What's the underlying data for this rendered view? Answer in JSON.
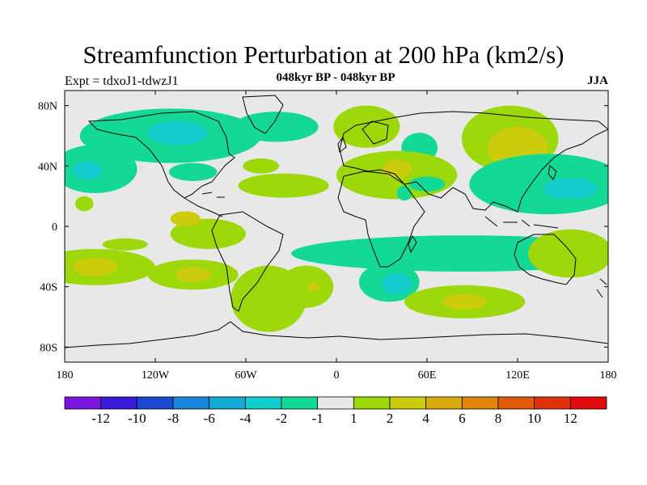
{
  "chart_data": {
    "type": "heatmap",
    "title": "Streamfunction Perturbation at 200 hPa (km2/s)",
    "subtitle": "048kyr BP - 048kyr BP",
    "left_string": "Expt = tdxoJ1-tdwzJ1",
    "right_string": "JJA",
    "x_range": [
      -180,
      180
    ],
    "y_range": [
      -90,
      90
    ],
    "x_ticks": [
      {
        "value": -180,
        "label": "180"
      },
      {
        "value": -120,
        "label": "120W"
      },
      {
        "value": -60,
        "label": "60W"
      },
      {
        "value": 0,
        "label": "0"
      },
      {
        "value": 60,
        "label": "60E"
      },
      {
        "value": 120,
        "label": "120E"
      },
      {
        "value": 180,
        "label": "180"
      }
    ],
    "y_ticks": [
      {
        "value": 80,
        "label": "80N"
      },
      {
        "value": 40,
        "label": "40N"
      },
      {
        "value": 0,
        "label": "0"
      },
      {
        "value": -40,
        "label": "40S"
      },
      {
        "value": -80,
        "label": "80S"
      }
    ],
    "colorbar": {
      "colors": [
        "#7a16e0",
        "#3a1ad8",
        "#1a4ad2",
        "#1a86d8",
        "#14aad4",
        "#14cccc",
        "#14d896",
        "#e8e8e8",
        "#9cd80a",
        "#cccc0c",
        "#d8aa0c",
        "#e0860a",
        "#e05a0a",
        "#e0300a",
        "#e00a0a"
      ],
      "labels": [
        "-12",
        "-10",
        "-8",
        "-6",
        "-4",
        "-2",
        "-1",
        "1",
        "2",
        "4",
        "6",
        "8",
        "10",
        "12"
      ]
    },
    "anomalies": [
      {
        "lon": -110,
        "lat": 60,
        "rlon": 60,
        "rlat": 18,
        "value": -2
      },
      {
        "lon": -105,
        "lat": 62,
        "rlon": 20,
        "rlat": 8,
        "value": -4
      },
      {
        "lon": -40,
        "lat": 66,
        "rlon": 28,
        "rlat": 10,
        "value": -2
      },
      {
        "lon": -160,
        "lat": 38,
        "rlon": 28,
        "rlat": 16,
        "value": -2
      },
      {
        "lon": -165,
        "lat": 37,
        "rlon": 10,
        "rlat": 6,
        "value": -4
      },
      {
        "lon": -95,
        "lat": 36,
        "rlon": 16,
        "rlat": 6,
        "value": -2
      },
      {
        "lon": -150,
        "lat": 60,
        "rlon": 4,
        "rlat": 4,
        "value": -2
      },
      {
        "lon": -50,
        "lat": 40,
        "rlon": 12,
        "rlat": 5,
        "value": 2
      },
      {
        "lon": -35,
        "lat": 27,
        "rlon": 30,
        "rlat": 8,
        "value": 2
      },
      {
        "lon": -167,
        "lat": 15,
        "rlon": 6,
        "rlat": 5,
        "value": 2
      },
      {
        "lon": 20,
        "lat": 66,
        "rlon": 22,
        "rlat": 14,
        "value": 2
      },
      {
        "lon": 55,
        "lat": 52,
        "rlon": 12,
        "rlat": 10,
        "value": -2
      },
      {
        "lon": 40,
        "lat": 34,
        "rlon": 40,
        "rlat": 16,
        "value": 2
      },
      {
        "lon": 40,
        "lat": 38,
        "rlon": 10,
        "rlat": 6,
        "value": 4
      },
      {
        "lon": 60,
        "lat": 28,
        "rlon": 12,
        "rlat": 5,
        "value": -2
      },
      {
        "lon": 45,
        "lat": 22,
        "rlon": 5,
        "rlat": 5,
        "value": -2
      },
      {
        "lon": 115,
        "lat": 58,
        "rlon": 32,
        "rlat": 22,
        "value": 2
      },
      {
        "lon": 120,
        "lat": 52,
        "rlon": 20,
        "rlat": 14,
        "value": 4
      },
      {
        "lon": 140,
        "lat": 28,
        "rlon": 52,
        "rlat": 20,
        "value": -2
      },
      {
        "lon": 155,
        "lat": 25,
        "rlon": 18,
        "rlat": 7,
        "value": -4
      },
      {
        "lon": 85,
        "lat": -18,
        "rlon": 115,
        "rlat": 12,
        "value": -2
      },
      {
        "lon": 35,
        "lat": -37,
        "rlon": 20,
        "rlat": 13,
        "value": -2
      },
      {
        "lon": 40,
        "lat": -38,
        "rlon": 10,
        "rlat": 7,
        "value": -4
      },
      {
        "lon": 155,
        "lat": -18,
        "rlon": 28,
        "rlat": 16,
        "value": 2
      },
      {
        "lon": 85,
        "lat": -50,
        "rlon": 40,
        "rlat": 11,
        "value": 2
      },
      {
        "lon": 85,
        "lat": -50,
        "rlon": 15,
        "rlat": 5,
        "value": 4
      },
      {
        "lon": -160,
        "lat": -27,
        "rlon": 40,
        "rlat": 12,
        "value": 2
      },
      {
        "lon": -160,
        "lat": -27,
        "rlon": 15,
        "rlat": 6,
        "value": 4
      },
      {
        "lon": -95,
        "lat": -32,
        "rlon": 30,
        "rlat": 10,
        "value": 2
      },
      {
        "lon": -95,
        "lat": -32,
        "rlon": 12,
        "rlat": 5,
        "value": 4
      },
      {
        "lon": -45,
        "lat": -48,
        "rlon": 25,
        "rlat": 22,
        "value": 2
      },
      {
        "lon": -20,
        "lat": -40,
        "rlon": 18,
        "rlat": 14,
        "value": 2
      },
      {
        "lon": -15,
        "lat": -40,
        "rlon": 4,
        "rlat": 3,
        "value": 4
      },
      {
        "lon": -85,
        "lat": -5,
        "rlon": 25,
        "rlat": 10,
        "value": 2
      },
      {
        "lon": -100,
        "lat": 5,
        "rlon": 10,
        "rlat": 5,
        "value": 4
      },
      {
        "lon": -140,
        "lat": -12,
        "rlon": 15,
        "rlat": 4,
        "value": 2
      }
    ]
  }
}
